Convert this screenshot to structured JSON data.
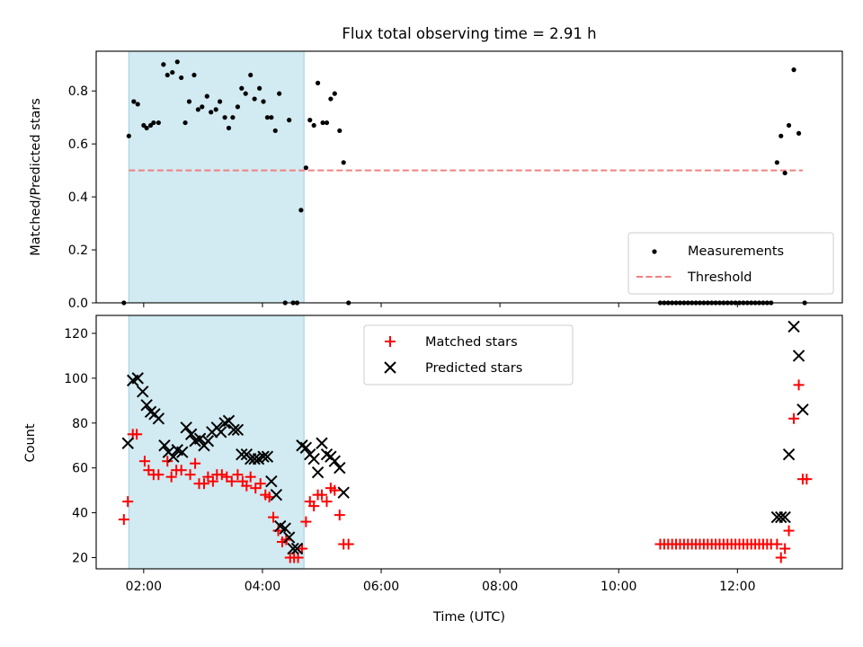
{
  "chart_data": [
    {
      "type": "scatter",
      "title": "Flux total observing time = 2.91 h",
      "ylabel": "Matched/Predicted stars",
      "xlabel": "",
      "xlim": [
        "01:12",
        "13:46"
      ],
      "ylim": [
        0,
        0.95
      ],
      "yticks": [
        0.0,
        0.2,
        0.4,
        0.6,
        0.8
      ],
      "ytick_labels": [
        "0.0",
        "0.2",
        "0.4",
        "0.6",
        "0.8"
      ],
      "shaded_interval": [
        "01:45",
        "04:42"
      ],
      "shade_color": "#add8e6",
      "legend_position": "lower-right",
      "series": [
        {
          "name": "Measurements",
          "marker": "dot",
          "color": "#000000",
          "points": [
            [
              "01:40",
              0.0
            ],
            [
              "01:45",
              0.63
            ],
            [
              "01:50",
              0.76
            ],
            [
              "01:54",
              0.75
            ],
            [
              "02:00",
              0.67
            ],
            [
              "02:03",
              0.66
            ],
            [
              "02:07",
              0.67
            ],
            [
              "02:10",
              0.68
            ],
            [
              "02:15",
              0.68
            ],
            [
              "02:20",
              0.9
            ],
            [
              "02:24",
              0.86
            ],
            [
              "02:29",
              0.87
            ],
            [
              "02:34",
              0.91
            ],
            [
              "02:38",
              0.85
            ],
            [
              "02:42",
              0.68
            ],
            [
              "02:46",
              0.76
            ],
            [
              "02:51",
              0.86
            ],
            [
              "02:55",
              0.73
            ],
            [
              "02:59",
              0.74
            ],
            [
              "03:04",
              0.78
            ],
            [
              "03:08",
              0.72
            ],
            [
              "03:13",
              0.73
            ],
            [
              "03:17",
              0.76
            ],
            [
              "03:22",
              0.7
            ],
            [
              "03:26",
              0.66
            ],
            [
              "03:30",
              0.7
            ],
            [
              "03:35",
              0.74
            ],
            [
              "03:39",
              0.81
            ],
            [
              "03:43",
              0.79
            ],
            [
              "03:48",
              0.86
            ],
            [
              "03:52",
              0.77
            ],
            [
              "03:57",
              0.81
            ],
            [
              "04:01",
              0.76
            ],
            [
              "04:05",
              0.7
            ],
            [
              "04:09",
              0.7
            ],
            [
              "04:13",
              0.65
            ],
            [
              "04:17",
              0.79
            ],
            [
              "04:23",
              0.0
            ],
            [
              "04:27",
              0.69
            ],
            [
              "04:31",
              0.0
            ],
            [
              "04:35",
              0.0
            ],
            [
              "04:39",
              0.35
            ],
            [
              "04:44",
              0.51
            ],
            [
              "04:48",
              0.69
            ],
            [
              "04:52",
              0.67
            ],
            [
              "04:56",
              0.83
            ],
            [
              "05:01",
              0.68
            ],
            [
              "05:05",
              0.68
            ],
            [
              "05:09",
              0.77
            ],
            [
              "05:13",
              0.79
            ],
            [
              "05:18",
              0.65
            ],
            [
              "05:22",
              0.53
            ],
            [
              "05:27",
              0.0
            ],
            [
              "10:42",
              0.0
            ],
            [
              "10:46",
              0.0
            ],
            [
              "10:50",
              0.0
            ],
            [
              "10:54",
              0.0
            ],
            [
              "10:58",
              0.0
            ],
            [
              "11:02",
              0.0
            ],
            [
              "11:06",
              0.0
            ],
            [
              "11:10",
              0.0
            ],
            [
              "11:14",
              0.0
            ],
            [
              "11:18",
              0.0
            ],
            [
              "11:22",
              0.0
            ],
            [
              "11:26",
              0.0
            ],
            [
              "11:30",
              0.0
            ],
            [
              "11:34",
              0.0
            ],
            [
              "11:38",
              0.0
            ],
            [
              "11:42",
              0.0
            ],
            [
              "11:46",
              0.0
            ],
            [
              "11:50",
              0.0
            ],
            [
              "11:54",
              0.0
            ],
            [
              "11:58",
              0.0
            ],
            [
              "12:02",
              0.0
            ],
            [
              "12:06",
              0.0
            ],
            [
              "12:10",
              0.0
            ],
            [
              "12:14",
              0.0
            ],
            [
              "12:18",
              0.0
            ],
            [
              "12:22",
              0.0
            ],
            [
              "12:26",
              0.0
            ],
            [
              "12:30",
              0.0
            ],
            [
              "12:34",
              0.0
            ],
            [
              "12:40",
              0.53
            ],
            [
              "12:44",
              0.63
            ],
            [
              "12:48",
              0.49
            ],
            [
              "12:52",
              0.67
            ],
            [
              "12:57",
              0.88
            ],
            [
              "13:02",
              0.64
            ],
            [
              "13:08",
              0.0
            ]
          ]
        },
        {
          "name": "Threshold",
          "line_style": "dashed",
          "color": "#f08080",
          "x": [
            "01:45",
            "13:06"
          ],
          "y": [
            0.5,
            0.5
          ]
        }
      ]
    },
    {
      "type": "scatter",
      "title": "",
      "ylabel": "Count",
      "xlabel": "Time (UTC)",
      "xlim": [
        "01:12",
        "13:46"
      ],
      "ylim": [
        15,
        128
      ],
      "yticks": [
        20,
        40,
        60,
        80,
        100,
        120
      ],
      "xticks": [
        "02:00",
        "04:00",
        "06:00",
        "08:00",
        "10:00",
        "12:00"
      ],
      "shaded_interval": [
        "01:45",
        "04:42"
      ],
      "shade_color": "#add8e6",
      "legend_position": "upper-center",
      "series": [
        {
          "name": "Matched stars",
          "marker": "plus",
          "color": "#ff0000",
          "points": [
            [
              "01:40",
              37
            ],
            [
              "01:44",
              45
            ],
            [
              "01:49",
              75
            ],
            [
              "01:53",
              75
            ],
            [
              "02:01",
              63
            ],
            [
              "02:05",
              59
            ],
            [
              "02:10",
              57
            ],
            [
              "02:15",
              57
            ],
            [
              "02:24",
              63
            ],
            [
              "02:28",
              56
            ],
            [
              "02:33",
              59
            ],
            [
              "02:38",
              59
            ],
            [
              "02:47",
              57
            ],
            [
              "02:52",
              62
            ],
            [
              "02:56",
              53
            ],
            [
              "03:01",
              53
            ],
            [
              "03:05",
              56
            ],
            [
              "03:10",
              54
            ],
            [
              "03:14",
              57
            ],
            [
              "03:19",
              57
            ],
            [
              "03:24",
              56
            ],
            [
              "03:29",
              54
            ],
            [
              "03:35",
              57
            ],
            [
              "03:40",
              54
            ],
            [
              "03:44",
              52
            ],
            [
              "03:48",
              56
            ],
            [
              "03:53",
              51
            ],
            [
              "03:58",
              53
            ],
            [
              "04:03",
              48
            ],
            [
              "04:07",
              47
            ],
            [
              "04:11",
              38
            ],
            [
              "04:16",
              32
            ],
            [
              "04:20",
              27
            ],
            [
              "04:24",
              28
            ],
            [
              "04:28",
              20
            ],
            [
              "04:32",
              20
            ],
            [
              "04:36",
              20
            ],
            [
              "04:40",
              24
            ],
            [
              "04:44",
              36
            ],
            [
              "04:48",
              45
            ],
            [
              "04:52",
              43
            ],
            [
              "04:56",
              48
            ],
            [
              "05:00",
              48
            ],
            [
              "05:05",
              45
            ],
            [
              "05:09",
              51
            ],
            [
              "05:13",
              50
            ],
            [
              "05:18",
              39
            ],
            [
              "05:22",
              26
            ],
            [
              "05:27",
              26
            ],
            [
              "10:42",
              26
            ],
            [
              "10:46",
              26
            ],
            [
              "10:50",
              26
            ],
            [
              "10:54",
              26
            ],
            [
              "10:58",
              26
            ],
            [
              "11:02",
              26
            ],
            [
              "11:06",
              26
            ],
            [
              "11:10",
              26
            ],
            [
              "11:14",
              26
            ],
            [
              "11:18",
              26
            ],
            [
              "11:22",
              26
            ],
            [
              "11:26",
              26
            ],
            [
              "11:30",
              26
            ],
            [
              "11:34",
              26
            ],
            [
              "11:38",
              26
            ],
            [
              "11:42",
              26
            ],
            [
              "11:46",
              26
            ],
            [
              "11:50",
              26
            ],
            [
              "11:54",
              26
            ],
            [
              "11:58",
              26
            ],
            [
              "12:02",
              26
            ],
            [
              "12:06",
              26
            ],
            [
              "12:10",
              26
            ],
            [
              "12:14",
              26
            ],
            [
              "12:18",
              26
            ],
            [
              "12:22",
              26
            ],
            [
              "12:26",
              26
            ],
            [
              "12:30",
              26
            ],
            [
              "12:34",
              26
            ],
            [
              "12:40",
              26
            ],
            [
              "12:44",
              20
            ],
            [
              "12:48",
              24
            ],
            [
              "12:52",
              32
            ],
            [
              "12:57",
              82
            ],
            [
              "13:02",
              97
            ],
            [
              "13:06",
              55
            ],
            [
              "13:10",
              55
            ]
          ]
        },
        {
          "name": "Predicted stars",
          "marker": "x",
          "color": "#000000",
          "points": [
            [
              "01:44",
              71
            ],
            [
              "01:49",
              99
            ],
            [
              "01:54",
              100
            ],
            [
              "01:59",
              94
            ],
            [
              "02:03",
              88
            ],
            [
              "02:07",
              85
            ],
            [
              "02:11",
              84
            ],
            [
              "02:15",
              82
            ],
            [
              "02:21",
              70
            ],
            [
              "02:25",
              67
            ],
            [
              "02:30",
              65
            ],
            [
              "02:34",
              68
            ],
            [
              "02:39",
              67
            ],
            [
              "02:43",
              78
            ],
            [
              "02:48",
              75
            ],
            [
              "02:52",
              72
            ],
            [
              "02:57",
              73
            ],
            [
              "03:01",
              70
            ],
            [
              "03:05",
              72
            ],
            [
              "03:09",
              76
            ],
            [
              "03:14",
              78
            ],
            [
              "03:18",
              76
            ],
            [
              "03:22",
              80
            ],
            [
              "03:26",
              81
            ],
            [
              "03:31",
              77
            ],
            [
              "03:35",
              77
            ],
            [
              "03:39",
              66
            ],
            [
              "03:44",
              66
            ],
            [
              "03:48",
              64
            ],
            [
              "03:52",
              64
            ],
            [
              "03:56",
              64
            ],
            [
              "04:01",
              65
            ],
            [
              "04:05",
              65
            ],
            [
              "04:09",
              54
            ],
            [
              "04:14",
              48
            ],
            [
              "04:18",
              34
            ],
            [
              "04:23",
              33
            ],
            [
              "04:27",
              29
            ],
            [
              "04:31",
              24
            ],
            [
              "04:35",
              24
            ],
            [
              "04:40",
              70
            ],
            [
              "04:44",
              69
            ],
            [
              "04:48",
              66
            ],
            [
              "04:52",
              64
            ],
            [
              "04:56",
              58
            ],
            [
              "05:00",
              71
            ],
            [
              "05:05",
              66
            ],
            [
              "05:09",
              65
            ],
            [
              "05:13",
              63
            ],
            [
              "05:18",
              60
            ],
            [
              "05:22",
              49
            ],
            [
              "12:40",
              38
            ],
            [
              "12:44",
              38
            ],
            [
              "12:48",
              38
            ],
            [
              "12:52",
              66
            ],
            [
              "12:57",
              123
            ],
            [
              "13:02",
              110
            ],
            [
              "13:06",
              86
            ]
          ]
        }
      ]
    }
  ]
}
